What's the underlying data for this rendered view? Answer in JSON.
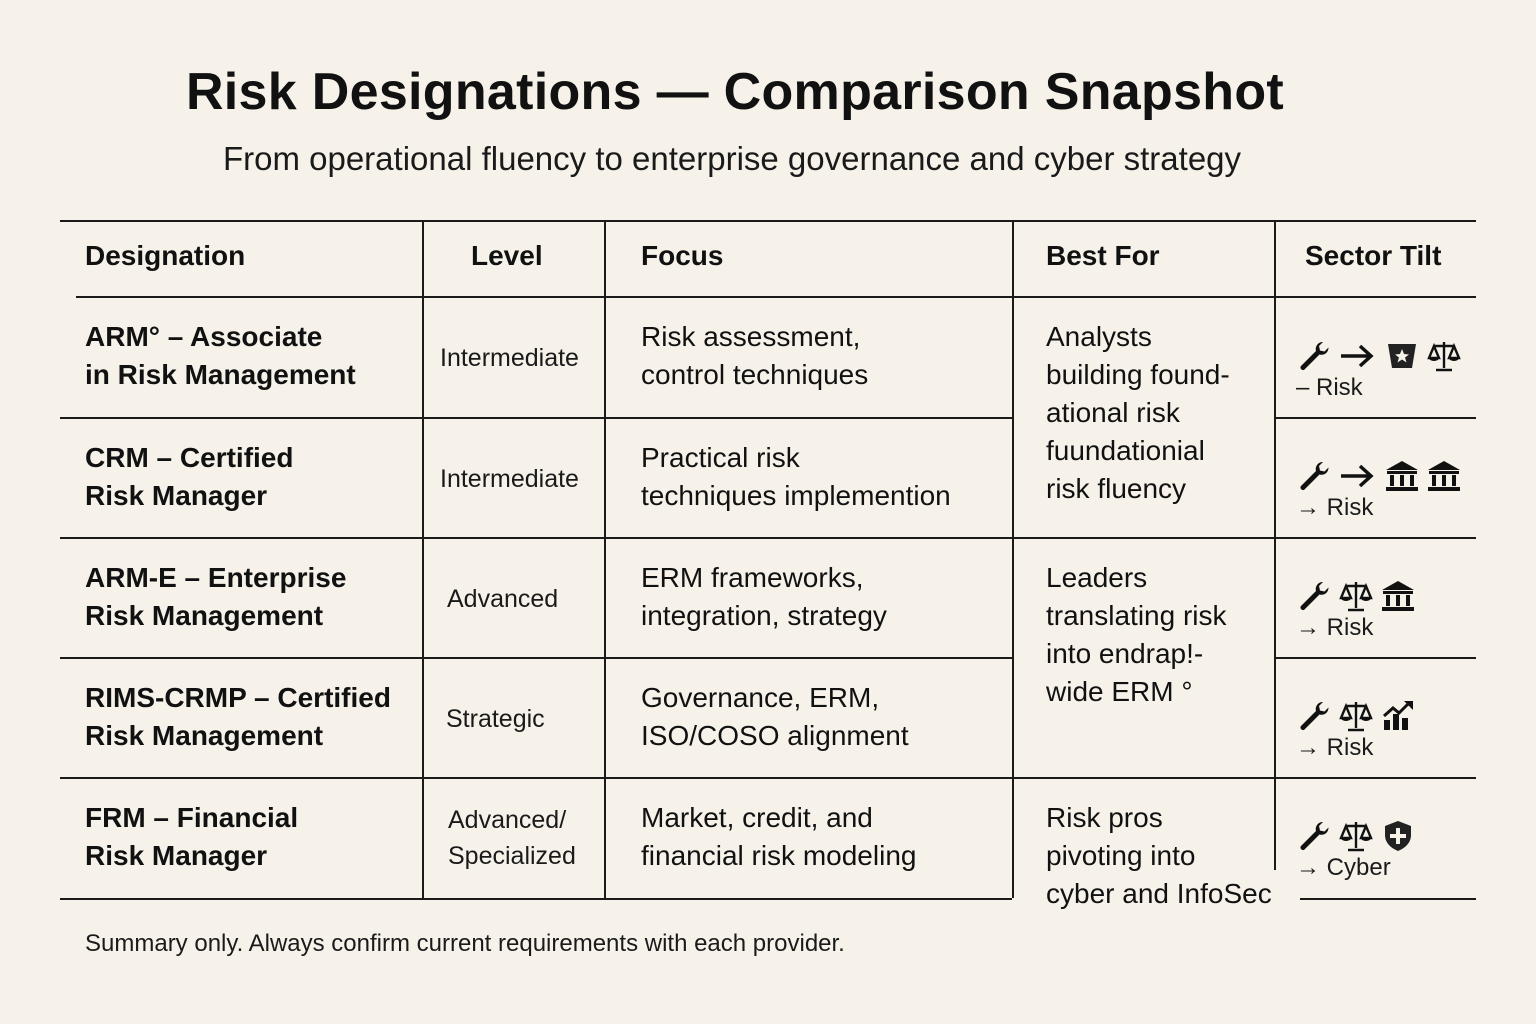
{
  "title": "Risk Designations — Comparison Snapshot",
  "subtitle": "From operational fluency to enterprise governance and cyber strategy",
  "headers": {
    "designation": "Designation",
    "level": "Level",
    "focus": "Focus",
    "best_for": "Best For",
    "sector_tilt": "Sector Tilt"
  },
  "rows": [
    {
      "designation": [
        "ARM° – Associate",
        "in Risk Management"
      ],
      "level": [
        "Intermediate"
      ],
      "focus": [
        "Risk assessment,",
        "control techniques"
      ],
      "sector_label": "– Risk",
      "sector_icons": [
        "wrench-icon",
        "arrow-right-icon",
        "badge-icon",
        "scales-icon"
      ]
    },
    {
      "designation": [
        "CRM – Certified",
        "Risk Manager"
      ],
      "level": [
        "Intermediate"
      ],
      "focus": [
        "Practical risk",
        "techniques implemention"
      ],
      "sector_label": "→ Risk",
      "sector_icons": [
        "wrench-icon",
        "arrow-right-icon",
        "bank-icon",
        "bank-icon"
      ]
    },
    {
      "designation": [
        "ARM-E – Enterprise",
        "Risk Management"
      ],
      "level": [
        "Advanced"
      ],
      "focus": [
        "ERM frameworks,",
        "integration, strategy"
      ],
      "sector_label": "→ Risk",
      "sector_icons": [
        "wrench-icon",
        "scales-icon",
        "bank-icon"
      ]
    },
    {
      "designation": [
        "RIMS-CRMP – Certified",
        "Risk Management"
      ],
      "level": [
        "Strategic"
      ],
      "focus": [
        "Governance, ERM,",
        "ISO/COSO alignment"
      ],
      "sector_label": "→ Risk",
      "sector_icons": [
        "wrench-icon",
        "scales-icon",
        "growth-chart-icon"
      ]
    },
    {
      "designation": [
        "FRM – Financial",
        "Risk Manager"
      ],
      "level": [
        "Advanced/",
        "Specialized"
      ],
      "focus": [
        "Market, credit, and",
        "financial risk modeling"
      ],
      "sector_label": "→ Cyber",
      "sector_icons": [
        "wrench-icon",
        "scales-icon",
        "shield-plus-icon"
      ]
    }
  ],
  "best_for_groups": [
    [
      "Analysts",
      "building found-",
      "ational risk",
      "fuundationial",
      "risk fluency"
    ],
    [
      "Leaders",
      "translating risk",
      "into endrap!-",
      "wide ERM °"
    ],
    [
      "Risk pros",
      "pivoting into",
      "cyber and InfoSec"
    ]
  ],
  "footer": "Summary only. Always confirm current requirements with each provider.",
  "colors": {
    "background": "#f6f2ea",
    "ink": "#111111"
  }
}
